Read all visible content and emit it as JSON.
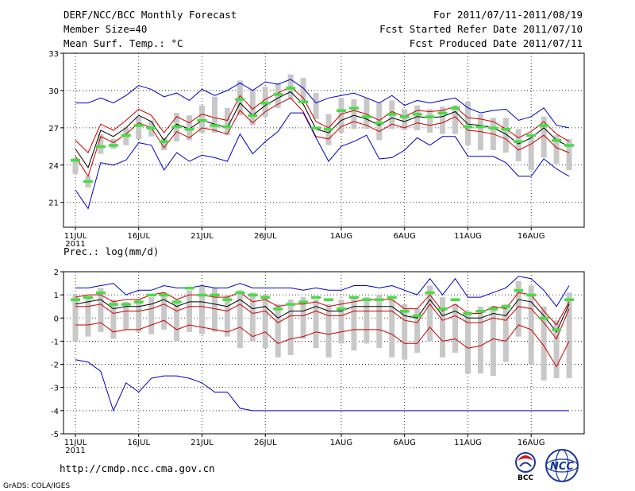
{
  "header": {
    "title": "DERF/NCC/BCC Monthly Forecast",
    "member_size": "Member Size=40",
    "variable": "Mean Surf. Temp.: °C",
    "period": "For 2011/07/11-2011/08/19",
    "started": "Fcst Started Refer Date 2011/07/10",
    "produced": "Fcst Produced Date 2011/07/11"
  },
  "footer": {
    "url": "http://cmdp.ncc.cma.gov.cn",
    "credit": "GrADS: COLA/IGES",
    "logo_bcc": "BCC",
    "logo_ncc": "NCC"
  },
  "colors": {
    "box": "#c8c8c8",
    "median": "#44dd44",
    "envelope": "#0000cc",
    "spread": "#cc0000",
    "mean": "#000000",
    "grid": "#000000"
  },
  "chart_data": [
    {
      "type": "box-ensemble",
      "title": "Mean Surf. Temp.: °C",
      "xlabel": "",
      "ylabel": "Mean Surf. Temp.",
      "xlim": [
        0,
        39
      ],
      "ylim": [
        19,
        33
      ],
      "yticks": [
        21,
        24,
        27,
        30,
        33
      ],
      "x_ticks": [
        {
          "day": 0,
          "label": "11JUL"
        },
        {
          "day": 5,
          "label": "16JUL"
        },
        {
          "day": 10,
          "label": "21JUL"
        },
        {
          "day": 15,
          "label": "26JUL"
        },
        {
          "day": 21,
          "label": "1AUG"
        },
        {
          "day": 26,
          "label": "6AUG"
        },
        {
          "day": 31,
          "label": "11AUG"
        },
        {
          "day": 36,
          "label": "16AUG"
        }
      ],
      "year_label": "2011",
      "box_low": [
        23.3,
        22.2,
        24.9,
        25.3,
        25.6,
        26.1,
        26.3,
        25.2,
        25.9,
        26.0,
        26.6,
        26.6,
        26.4,
        28.0,
        27.2,
        27.9,
        28.6,
        29.3,
        29.1,
        27.7,
        25.6,
        26.6,
        26.9,
        26.9,
        26.0,
        26.9,
        26.8,
        26.8,
        26.6,
        26.5,
        26.5,
        25.6,
        25.2,
        25.2,
        25.0,
        24.3,
        23.6,
        24.6,
        24.1,
        23.6
      ],
      "box_high": [
        24.6,
        23.1,
        26.5,
        26.1,
        27.0,
        27.9,
        27.6,
        26.2,
        28.2,
        28.0,
        28.8,
        29.5,
        28.6,
        30.8,
        30.1,
        30.3,
        30.6,
        31.3,
        31.0,
        29.8,
        28.1,
        29.4,
        29.3,
        29.4,
        29.0,
        29.2,
        28.5,
        28.8,
        28.5,
        28.7,
        28.8,
        29.1,
        28.1,
        27.8,
        27.8,
        26.9,
        26.2,
        27.9,
        26.4,
        26.1
      ],
      "median": [
        24.4,
        22.7,
        25.5,
        25.6,
        26.4,
        27.2,
        27.0,
        25.9,
        27.1,
        26.9,
        27.6,
        27.2,
        27.1,
        29.3,
        28.0,
        29.0,
        29.7,
        30.2,
        29.1,
        27.0,
        26.9,
        28.4,
        28.6,
        27.9,
        27.4,
        28.1,
        27.9,
        28.1,
        27.9,
        28.2,
        28.6,
        27.1,
        27.1,
        27.0,
        26.9,
        25.9,
        26.4,
        27.2,
        26.0,
        25.6
      ],
      "series": [
        {
          "name": "max",
          "values": [
            29.0,
            29.0,
            29.4,
            29.0,
            29.6,
            30.4,
            30.1,
            29.5,
            29.8,
            29.2,
            30.1,
            29.6,
            30.0,
            30.6,
            30.0,
            30.7,
            30.5,
            30.9,
            30.2,
            29.0,
            29.4,
            29.6,
            29.8,
            29.4,
            29.0,
            29.6,
            28.8,
            29.2,
            29.0,
            29.2,
            29.4,
            28.6,
            28.2,
            28.4,
            28.5,
            27.6,
            27.9,
            28.6,
            27.2,
            27.0
          ]
        },
        {
          "name": "spread_upper",
          "values": [
            26.0,
            25.0,
            27.3,
            26.8,
            27.6,
            28.5,
            28.0,
            26.6,
            27.9,
            27.4,
            28.1,
            27.8,
            27.6,
            29.6,
            28.5,
            29.3,
            29.8,
            30.3,
            29.4,
            27.5,
            27.0,
            28.1,
            28.4,
            28.1,
            27.6,
            28.3,
            27.9,
            28.4,
            28.3,
            28.4,
            28.7,
            27.8,
            27.7,
            27.5,
            26.9,
            26.2,
            26.7,
            27.5,
            26.5,
            25.9
          ]
        },
        {
          "name": "mean",
          "values": [
            25.3,
            23.8,
            26.8,
            26.3,
            27.0,
            28.0,
            27.5,
            26.0,
            27.3,
            26.9,
            27.6,
            27.3,
            27.0,
            29.0,
            28.0,
            28.8,
            29.4,
            29.9,
            28.9,
            26.9,
            26.6,
            27.6,
            28.0,
            27.7,
            27.2,
            27.8,
            27.5,
            27.9,
            27.8,
            27.9,
            28.3,
            27.3,
            27.2,
            27.0,
            26.5,
            25.7,
            26.2,
            27.0,
            26.0,
            25.5
          ]
        },
        {
          "name": "spread_lower",
          "values": [
            24.7,
            23.1,
            26.3,
            25.8,
            26.5,
            27.4,
            27.0,
            25.4,
            26.7,
            26.2,
            27.0,
            26.8,
            26.5,
            28.4,
            27.4,
            28.3,
            28.9,
            29.4,
            28.3,
            26.3,
            26.1,
            27.1,
            27.5,
            27.2,
            26.7,
            27.3,
            27.0,
            27.4,
            27.2,
            27.4,
            27.9,
            26.8,
            26.7,
            26.5,
            26.1,
            25.2,
            25.7,
            26.4,
            25.4,
            25.0
          ]
        },
        {
          "name": "min",
          "values": [
            22.0,
            20.5,
            24.2,
            24.0,
            24.4,
            25.8,
            25.6,
            23.6,
            25.0,
            24.3,
            24.8,
            24.6,
            24.3,
            26.5,
            24.9,
            25.9,
            26.7,
            28.2,
            28.2,
            26.2,
            24.3,
            25.5,
            25.9,
            26.4,
            24.5,
            24.6,
            25.2,
            26.2,
            25.6,
            26.3,
            26.3,
            24.7,
            24.7,
            24.7,
            24.2,
            23.1,
            23.1,
            24.5,
            23.7,
            23.1
          ]
        }
      ]
    },
    {
      "type": "box-ensemble",
      "title": "Prec.: log(mm/d)",
      "xlabel": "",
      "ylabel": "Prec.",
      "xlim": [
        0,
        39
      ],
      "ylim": [
        -5,
        2
      ],
      "yticks": [
        -5,
        -4,
        -3,
        -2,
        -1,
        0,
        1,
        2
      ],
      "x_ticks": [
        {
          "day": 0,
          "label": "11JUL"
        },
        {
          "day": 5,
          "label": "16JUL"
        },
        {
          "day": 10,
          "label": "21JUL"
        },
        {
          "day": 15,
          "label": "26JUL"
        },
        {
          "day": 21,
          "label": "1AUG"
        },
        {
          "day": 26,
          "label": "6AUG"
        },
        {
          "day": 31,
          "label": "11AUG"
        },
        {
          "day": 36,
          "label": "16AUG"
        }
      ],
      "year_label": "2011",
      "box_low": [
        -1.0,
        -0.8,
        -0.6,
        -0.9,
        -0.5,
        -0.6,
        -0.7,
        -0.5,
        -1.0,
        -0.6,
        -0.7,
        -0.6,
        -0.8,
        -1.3,
        -1.0,
        -1.3,
        -1.7,
        -1.6,
        -0.9,
        -1.3,
        -1.7,
        -1.1,
        -1.4,
        -1.1,
        -1.3,
        -1.7,
        -1.8,
        -1.5,
        -1.0,
        -1.7,
        -1.5,
        -2.4,
        -2.4,
        -2.5,
        -1.9,
        -0.8,
        -2.0,
        -2.7,
        -2.6,
        -2.6
      ],
      "box_high": [
        1.0,
        0.9,
        1.3,
        0.8,
        0.7,
        0.8,
        0.9,
        1.1,
        0.8,
        1.2,
        1.4,
        1.3,
        1.0,
        1.2,
        1.1,
        1.0,
        0.6,
        0.8,
        0.9,
        0.8,
        0.6,
        0.8,
        0.9,
        0.9,
        1.0,
        0.8,
        0.6,
        0.4,
        1.4,
        0.9,
        0.6,
        0.3,
        0.5,
        0.5,
        0.6,
        1.6,
        1.4,
        0.5,
        -0.1,
        1.1
      ],
      "median": [
        0.8,
        0.9,
        1.1,
        0.6,
        0.6,
        0.7,
        1.0,
        1.0,
        0.7,
        1.3,
        1.0,
        1.0,
        0.8,
        1.1,
        1.0,
        0.9,
        0.4,
        0.6,
        0.7,
        0.9,
        0.8,
        0.4,
        0.9,
        0.8,
        0.8,
        0.9,
        0.3,
        0.1,
        1.1,
        0.4,
        0.8,
        0.2,
        0.3,
        0.4,
        0.5,
        1.2,
        1.0,
        0.0,
        -0.5,
        0.8
      ],
      "series": [
        {
          "name": "max",
          "values": [
            1.3,
            1.3,
            1.4,
            1.5,
            1.0,
            1.2,
            1.2,
            1.4,
            1.3,
            1.3,
            1.4,
            1.3,
            1.3,
            1.5,
            1.3,
            1.3,
            1.3,
            1.3,
            1.2,
            1.3,
            1.2,
            1.2,
            1.4,
            1.4,
            1.3,
            1.4,
            1.2,
            1.0,
            1.7,
            1.0,
            1.7,
            0.9,
            0.9,
            1.1,
            1.3,
            1.8,
            1.7,
            1.2,
            0.5,
            1.4
          ]
        },
        {
          "name": "spread_upper",
          "values": [
            0.9,
            1.0,
            1.0,
            0.7,
            0.8,
            0.8,
            1.0,
            1.1,
            0.8,
            1.0,
            1.0,
            0.9,
            0.9,
            1.1,
            0.7,
            0.8,
            0.5,
            0.6,
            0.6,
            0.7,
            0.5,
            0.6,
            0.7,
            0.8,
            0.8,
            0.8,
            0.4,
            0.4,
            1.0,
            0.3,
            0.6,
            0.2,
            0.2,
            0.5,
            0.4,
            1.1,
            1.0,
            0.3,
            -0.3,
            0.7
          ]
        },
        {
          "name": "mean",
          "values": [
            0.6,
            0.7,
            0.8,
            0.4,
            0.5,
            0.5,
            0.6,
            0.8,
            0.5,
            0.7,
            0.7,
            0.6,
            0.5,
            0.8,
            0.4,
            0.5,
            0.0,
            0.3,
            0.3,
            0.5,
            0.3,
            0.3,
            0.5,
            0.5,
            0.5,
            0.5,
            0.1,
            0.0,
            0.8,
            0.1,
            0.3,
            0.0,
            0.0,
            0.2,
            0.1,
            0.8,
            0.7,
            0.1,
            -0.6,
            0.6
          ]
        },
        {
          "name": "spread_lower",
          "values": [
            0.5,
            0.5,
            0.6,
            0.2,
            0.3,
            0.3,
            0.4,
            0.6,
            0.3,
            0.5,
            0.5,
            0.4,
            0.3,
            0.6,
            0.2,
            0.3,
            -0.2,
            0.1,
            0.1,
            0.3,
            0.1,
            0.1,
            0.3,
            0.3,
            0.3,
            0.3,
            -0.1,
            -0.2,
            0.6,
            -0.1,
            0.1,
            -0.2,
            -0.2,
            0.0,
            -0.1,
            0.5,
            0.4,
            -0.2,
            -0.9,
            0.4
          ]
        },
        {
          "name": "spread_min",
          "values": [
            -0.3,
            -0.3,
            -0.2,
            -0.6,
            -0.5,
            -0.5,
            -0.3,
            -0.1,
            -0.5,
            -0.3,
            -0.4,
            -0.5,
            -0.6,
            -0.4,
            -0.8,
            -0.6,
            -1.1,
            -0.9,
            -0.8,
            -0.6,
            -0.7,
            -0.6,
            -0.5,
            -0.5,
            -0.5,
            -0.7,
            -1.1,
            -1.1,
            -0.4,
            -1.0,
            -0.9,
            -1.3,
            -1.2,
            -0.9,
            -1.0,
            -0.3,
            -0.5,
            -1.2,
            -2.1,
            -1.0
          ]
        },
        {
          "name": "min",
          "values": [
            -1.8,
            -1.9,
            -2.3,
            -4.0,
            -2.8,
            -3.2,
            -2.6,
            -2.5,
            -2.5,
            -2.6,
            -2.8,
            -3.2,
            -3.2,
            -3.9,
            -4.0,
            -4.0,
            -4.0,
            -4.0,
            -4.0,
            -4.0,
            -4.0,
            -4.0,
            -4.0,
            -4.0,
            -4.0,
            -4.0,
            -4.0,
            -4.0,
            -4.0,
            -4.0,
            -4.0,
            -4.0,
            -4.0,
            -4.0,
            -4.0,
            -4.0,
            -4.0,
            -4.0,
            -4.0,
            -4.0
          ]
        }
      ]
    }
  ]
}
